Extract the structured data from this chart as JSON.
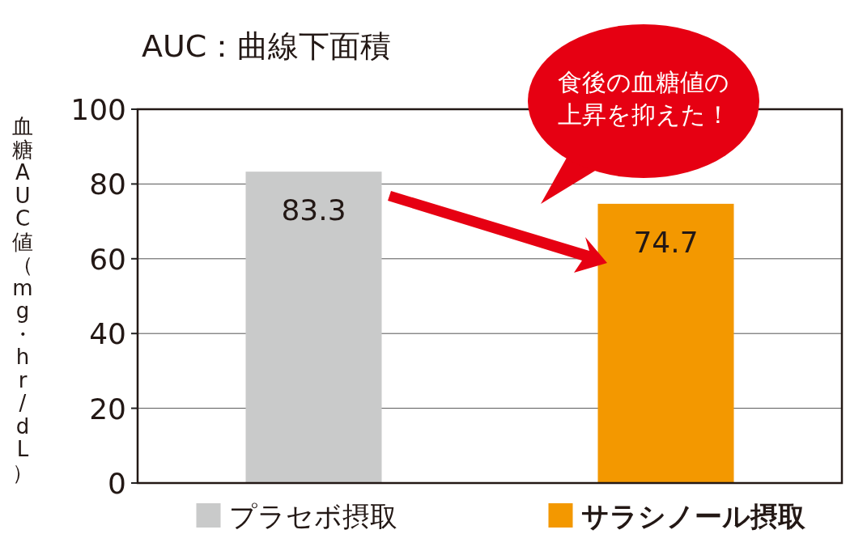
{
  "chart_data": {
    "type": "bar",
    "title": "AUC：曲線下面積",
    "ylabel": "血糖AUC値（mg・hr/dL）",
    "categories": [
      "プラセボ摂取",
      "サラシノール摂取"
    ],
    "values": [
      83.3,
      74.7
    ],
    "colors": [
      "#c9caca",
      "#f39800"
    ],
    "ylim": [
      0,
      100
    ],
    "yticks": [
      0,
      20,
      40,
      60,
      80,
      100
    ],
    "grid": "y",
    "data_labels": true,
    "annotations": [
      "食後の血糖値の上昇を抑えた！"
    ]
  }
}
